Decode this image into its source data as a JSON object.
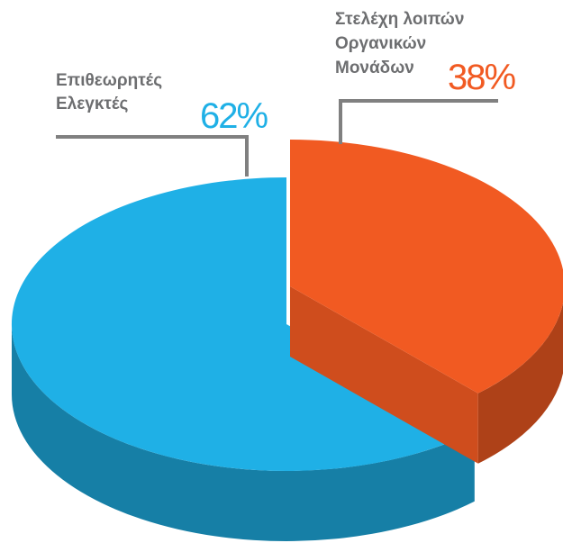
{
  "chart_data": {
    "type": "pie3d",
    "categories": [
      [
        "Επιθεωρητές",
        "Ελεγκτές"
      ],
      [
        "Στελέχη λοιπών",
        "Οργανικών",
        "Μονάδων"
      ]
    ],
    "values": [
      62,
      38
    ],
    "value_labels": [
      "62%",
      "38%"
    ],
    "colors": [
      "#1fb0e6",
      "#f15a22"
    ]
  }
}
